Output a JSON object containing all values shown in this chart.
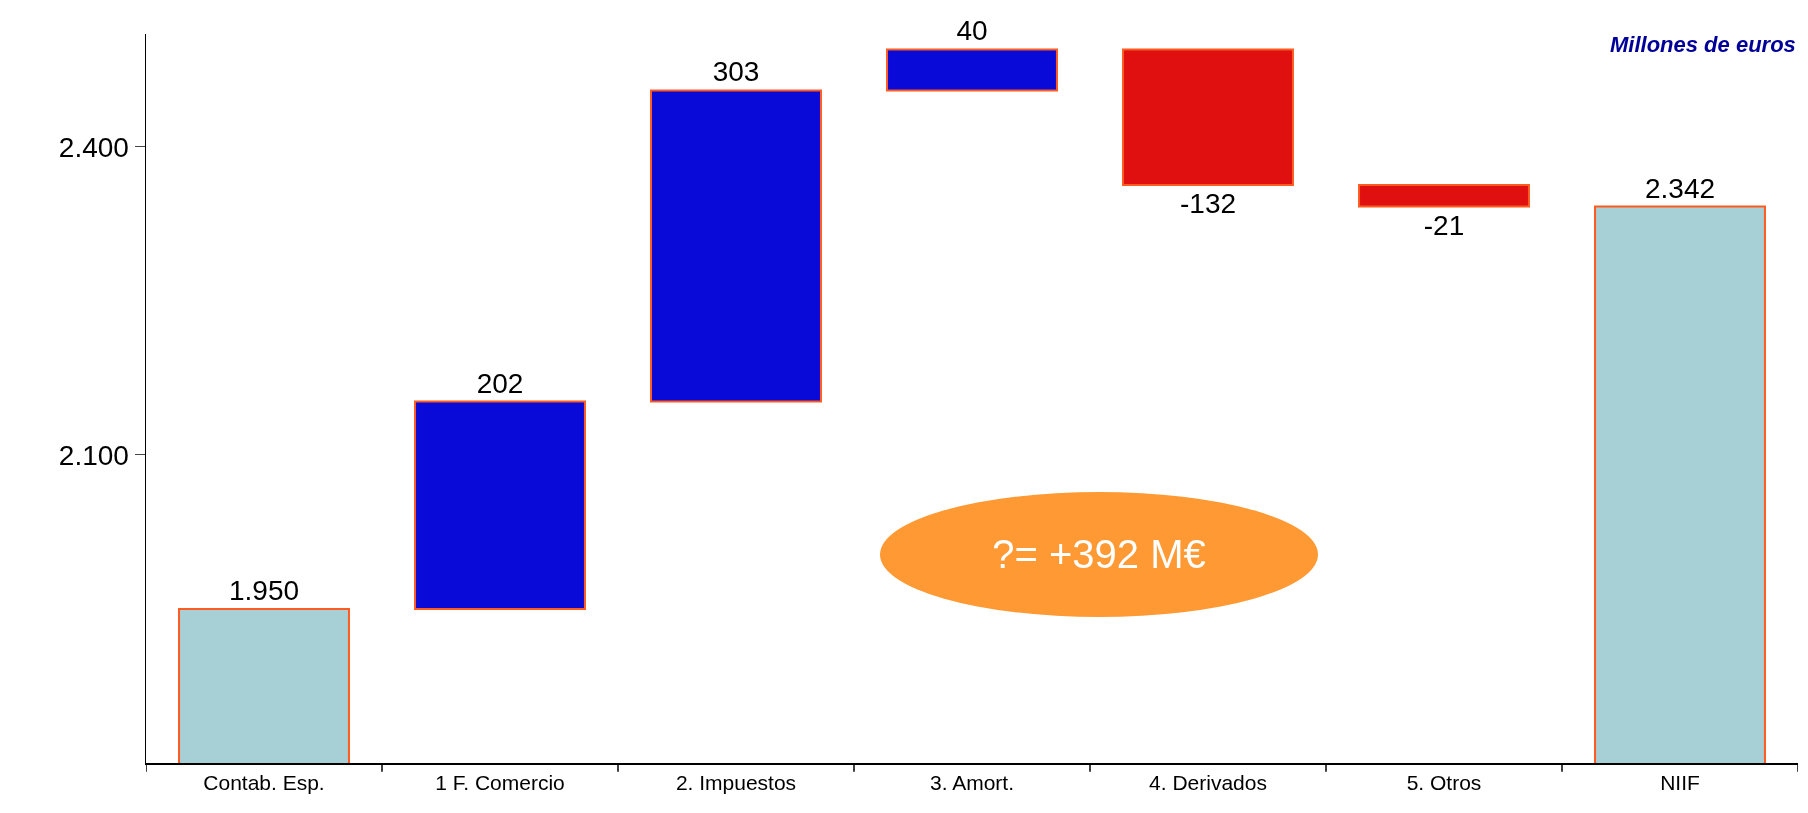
{
  "chart_data": {
    "type": "bar",
    "categories": [
      "Contab. Esp.",
      "1 F. Comercio",
      "2. Impuestos",
      "3. Amort.",
      "4. Derivados",
      "5. Otros",
      "NIIF"
    ],
    "values": [
      1950,
      202,
      303,
      40,
      -132,
      -21,
      2342
    ],
    "base": [
      0,
      1950,
      2152,
      2455,
      2495,
      2363,
      0
    ],
    "colors": [
      "#a6d0d5",
      "#0a0ad8",
      "#0a0ad8",
      "#0a0ad8",
      "#e01010",
      "#e01010",
      "#a6d0d5"
    ],
    "value_labels": [
      "1.950",
      "202",
      "303",
      "40",
      "-132",
      "-21",
      "2.342"
    ],
    "ylim": [
      1800,
      2510
    ],
    "yticks": [
      {
        "value": 2100,
        "label": "2.100"
      },
      {
        "value": 2400,
        "label": "2.400"
      }
    ],
    "annotations": [
      "Millones de euros",
      "?= +392 M€"
    ],
    "grid": false,
    "legend": false
  }
}
